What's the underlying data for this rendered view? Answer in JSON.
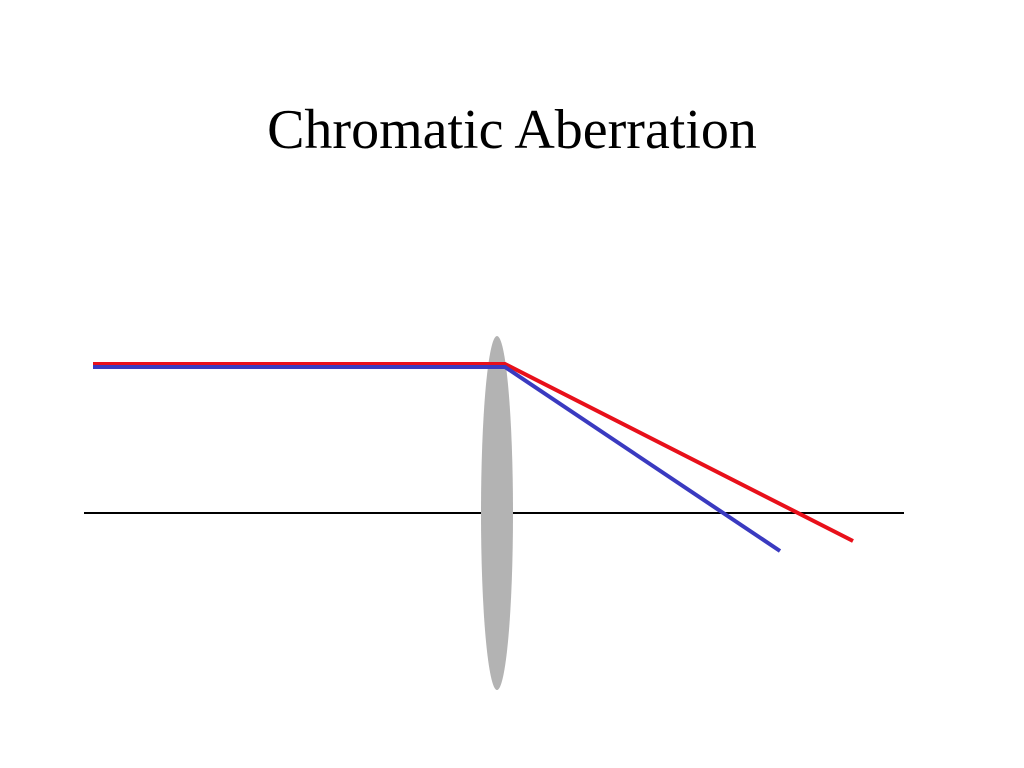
{
  "title": "Chromatic Aberration"
}
